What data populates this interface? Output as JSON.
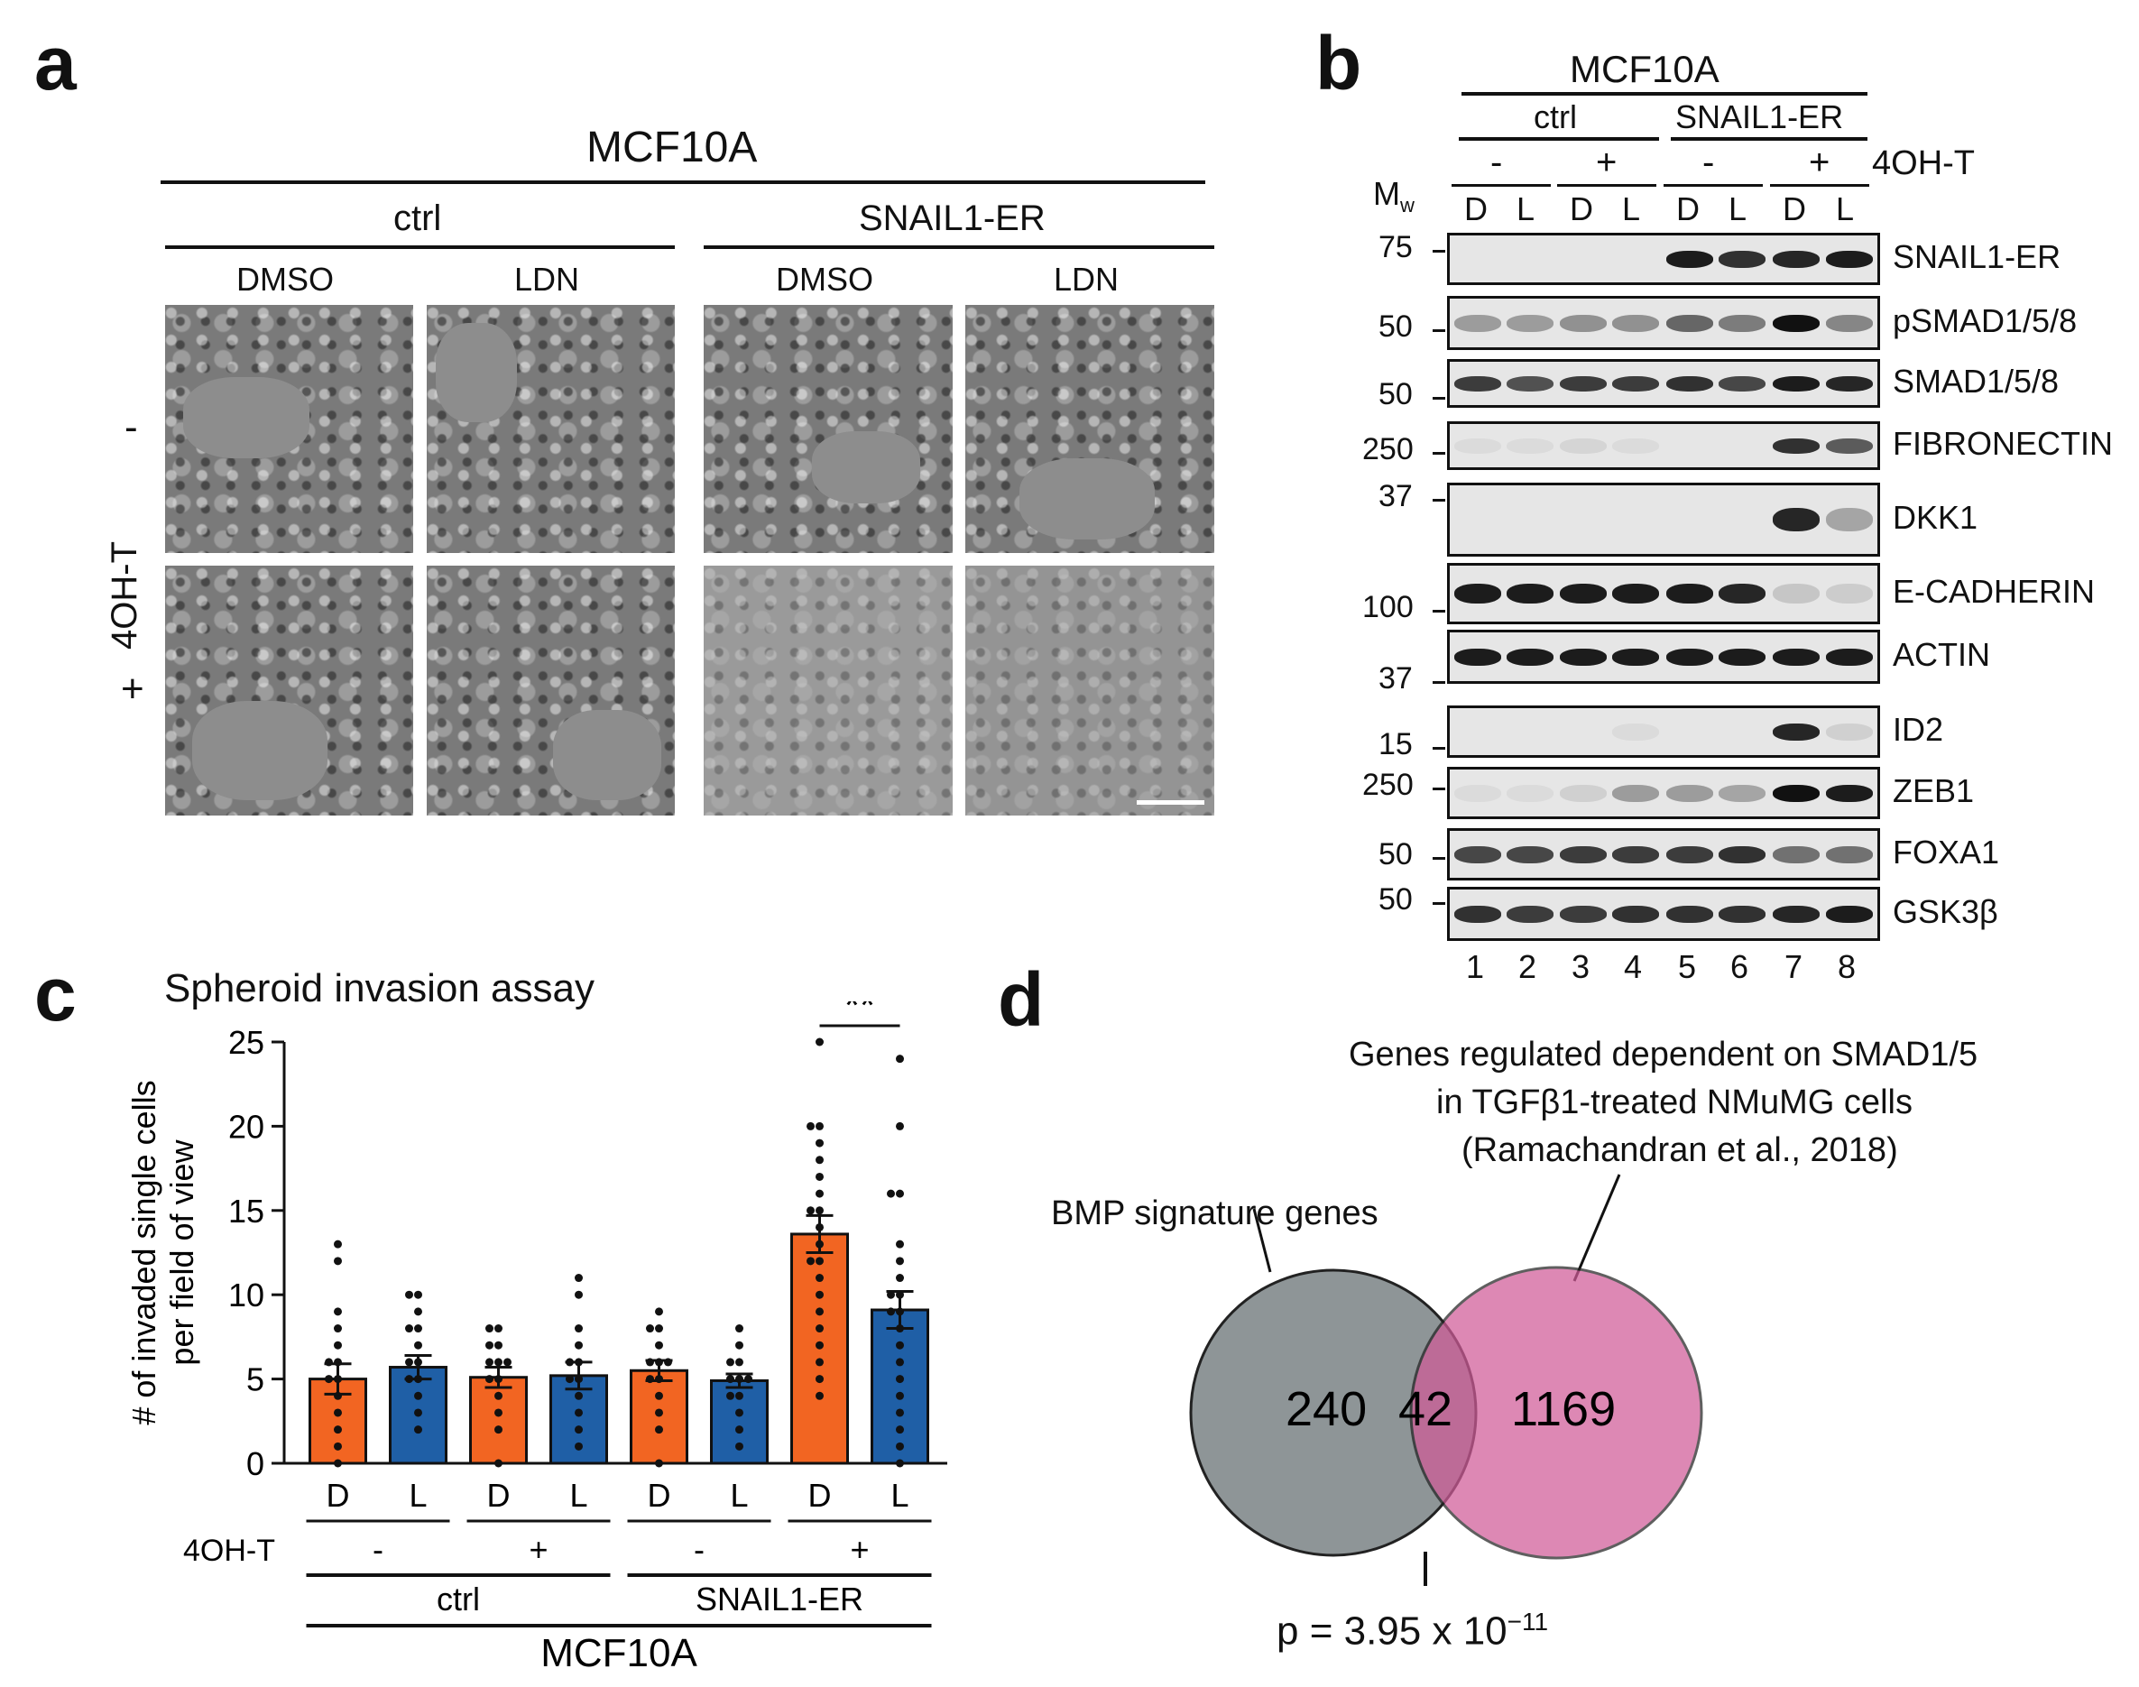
{
  "panel_a": {
    "label": "a",
    "cell_line": "MCF10A",
    "groups": [
      "ctrl",
      "SNAIL1-ER"
    ],
    "treatments": [
      "DMSO",
      "LDN",
      "DMSO",
      "LDN"
    ],
    "row_axis_label": "4OH-T",
    "row_labels": [
      "-",
      "+"
    ]
  },
  "panel_b": {
    "label": "b",
    "cell_line": "MCF10A",
    "groups": [
      "ctrl",
      "SNAIL1-ER"
    ],
    "ohts": [
      "-",
      "+",
      "-",
      "+"
    ],
    "oht_label": "4OH-T",
    "mw_label": "M",
    "mw_sub": "w",
    "lane_treat": [
      "D",
      "L",
      "D",
      "L",
      "D",
      "L",
      "D",
      "L"
    ],
    "lane_numbers": [
      "1",
      "2",
      "3",
      "4",
      "5",
      "6",
      "7",
      "8"
    ],
    "mw_markers": [
      "75",
      "50",
      "50",
      "250",
      "37",
      "100",
      "37",
      "15",
      "250",
      "50",
      "50"
    ],
    "blots": [
      {
        "name": "SNAIL1-ER",
        "intensity": [
          0,
          0,
          0,
          0,
          0.95,
          0.85,
          0.9,
          0.95
        ]
      },
      {
        "name": "pSMAD1/5/8",
        "intensity": [
          0.35,
          0.35,
          0.4,
          0.4,
          0.6,
          0.5,
          1.0,
          0.45
        ]
      },
      {
        "name": "SMAD1/5/8",
        "intensity": [
          0.8,
          0.7,
          0.8,
          0.8,
          0.85,
          0.75,
          0.95,
          0.9
        ]
      },
      {
        "name": "FIBRONECTIN",
        "intensity": [
          0.05,
          0.05,
          0.08,
          0.05,
          0,
          0,
          0.85,
          0.65
        ]
      },
      {
        "name": "DKK1",
        "intensity": [
          0,
          0,
          0,
          0,
          0,
          0,
          0.9,
          0.3
        ]
      },
      {
        "name": "E-CADHERIN",
        "intensity": [
          0.95,
          0.95,
          0.95,
          0.95,
          0.95,
          0.9,
          0.15,
          0.12
        ]
      },
      {
        "name": "ACTIN",
        "intensity": [
          0.95,
          0.95,
          0.95,
          0.95,
          0.95,
          0.95,
          0.95,
          0.95
        ]
      },
      {
        "name": "ID2",
        "intensity": [
          0,
          0,
          0,
          0.05,
          0,
          0,
          0.9,
          0.1
        ]
      },
      {
        "name": "ZEB1",
        "intensity": [
          0.05,
          0.05,
          0.1,
          0.35,
          0.35,
          0.3,
          1.0,
          0.95
        ]
      },
      {
        "name": "FOXA1",
        "intensity": [
          0.75,
          0.75,
          0.8,
          0.8,
          0.8,
          0.85,
          0.55,
          0.55
        ]
      },
      {
        "name": "GSK3β",
        "intensity": [
          0.85,
          0.8,
          0.8,
          0.85,
          0.85,
          0.85,
          0.9,
          0.95
        ]
      }
    ]
  },
  "chart_data": {
    "type": "bar",
    "label": "c",
    "title": "Spheroid invasion assay",
    "ylabel_line1": "# of invaded single cells",
    "ylabel_line2": "per field of view",
    "ylim": [
      0,
      25
    ],
    "yticks": [
      "0",
      "5",
      "10",
      "15",
      "20",
      "25"
    ],
    "categories": [
      "D",
      "L",
      "D",
      "L",
      "D",
      "L",
      "D",
      "L"
    ],
    "values": [
      5.0,
      5.7,
      5.1,
      5.2,
      5.5,
      4.9,
      13.6,
      9.1
    ],
    "errors": [
      0.9,
      0.7,
      0.6,
      0.8,
      0.6,
      0.4,
      1.1,
      1.1
    ],
    "bar_colors": [
      "#f26522",
      "#1f5fa6",
      "#f26522",
      "#1f5fa6",
      "#f26522",
      "#1f5fa6",
      "#f26522",
      "#1f5fa6"
    ],
    "points": [
      [
        13,
        12,
        9,
        8,
        7,
        6,
        5,
        4,
        3,
        2,
        1,
        0,
        5,
        6
      ],
      [
        10,
        10,
        9,
        8,
        8,
        7,
        6,
        6,
        5,
        4,
        3,
        2,
        5
      ],
      [
        8,
        8,
        7,
        6,
        6,
        5,
        5,
        4,
        3,
        2,
        0,
        7,
        6
      ],
      [
        11,
        10,
        8,
        7,
        6,
        6,
        5,
        4,
        3,
        2,
        1,
        5
      ],
      [
        9,
        8,
        8,
        7,
        6,
        6,
        5,
        5,
        4,
        3,
        2,
        0,
        6
      ],
      [
        8,
        7,
        6,
        6,
        5,
        5,
        4,
        4,
        3,
        2,
        1,
        5
      ],
      [
        25,
        20,
        20,
        19,
        18,
        17,
        16,
        15,
        14,
        13,
        12,
        11,
        10,
        9,
        8,
        7,
        6,
        5,
        4,
        12,
        15
      ],
      [
        24,
        20,
        16,
        16,
        13,
        12,
        11,
        10,
        9,
        8,
        7,
        6,
        5,
        4,
        3,
        2,
        1,
        0,
        9,
        10
      ]
    ],
    "oht_label": "4OH-T",
    "ohts": [
      "-",
      "+",
      "-",
      "+"
    ],
    "groups": [
      "ctrl",
      "SNAIL1-ER"
    ],
    "cell_line": "MCF10A",
    "significance": "**"
  },
  "panel_d": {
    "label": "d",
    "left_title": "BMP signature genes",
    "right_title_lines": [
      "Genes regulated dependent on SMAD1/5",
      "in TGFβ1-treated NMuMG cells",
      "(Ramachandran et al., 2018)"
    ],
    "left_only": "240",
    "overlap": "42",
    "right_only": "1169",
    "p_prefix": "p = 3.95 x 10",
    "p_exp": "−11",
    "colors": {
      "left": "#8e9597",
      "right": "#d05b98"
    }
  }
}
